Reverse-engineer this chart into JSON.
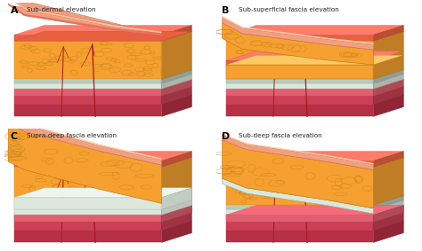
{
  "panels": [
    {
      "label": "A",
      "title": "Sub-dermal elevation"
    },
    {
      "label": "B",
      "title": "Sub-superficial fascia elevation"
    },
    {
      "label": "C",
      "title": "Supra-deep fascia elevation"
    },
    {
      "label": "D",
      "title": "Sub-deep fascia elevation"
    }
  ],
  "colors": {
    "background": "#ffffff",
    "skin_pink": "#f0a080",
    "skin_salmon": "#e87060",
    "skin_orange": "#e86040",
    "fat_orange": "#f5a030",
    "fat_yellow": "#f0c060",
    "fat_cell_edge": "#d08820",
    "fascia_white": "#dde8dd",
    "fascia_gray": "#b8ccc0",
    "muscle_light": "#e06070",
    "muscle_mid": "#cc4055",
    "muscle_dark": "#b83045",
    "vessel_red": "#aa1820",
    "lifted_skin_top": "#f5c0a8",
    "lifted_skin_bot": "#f0a080"
  }
}
